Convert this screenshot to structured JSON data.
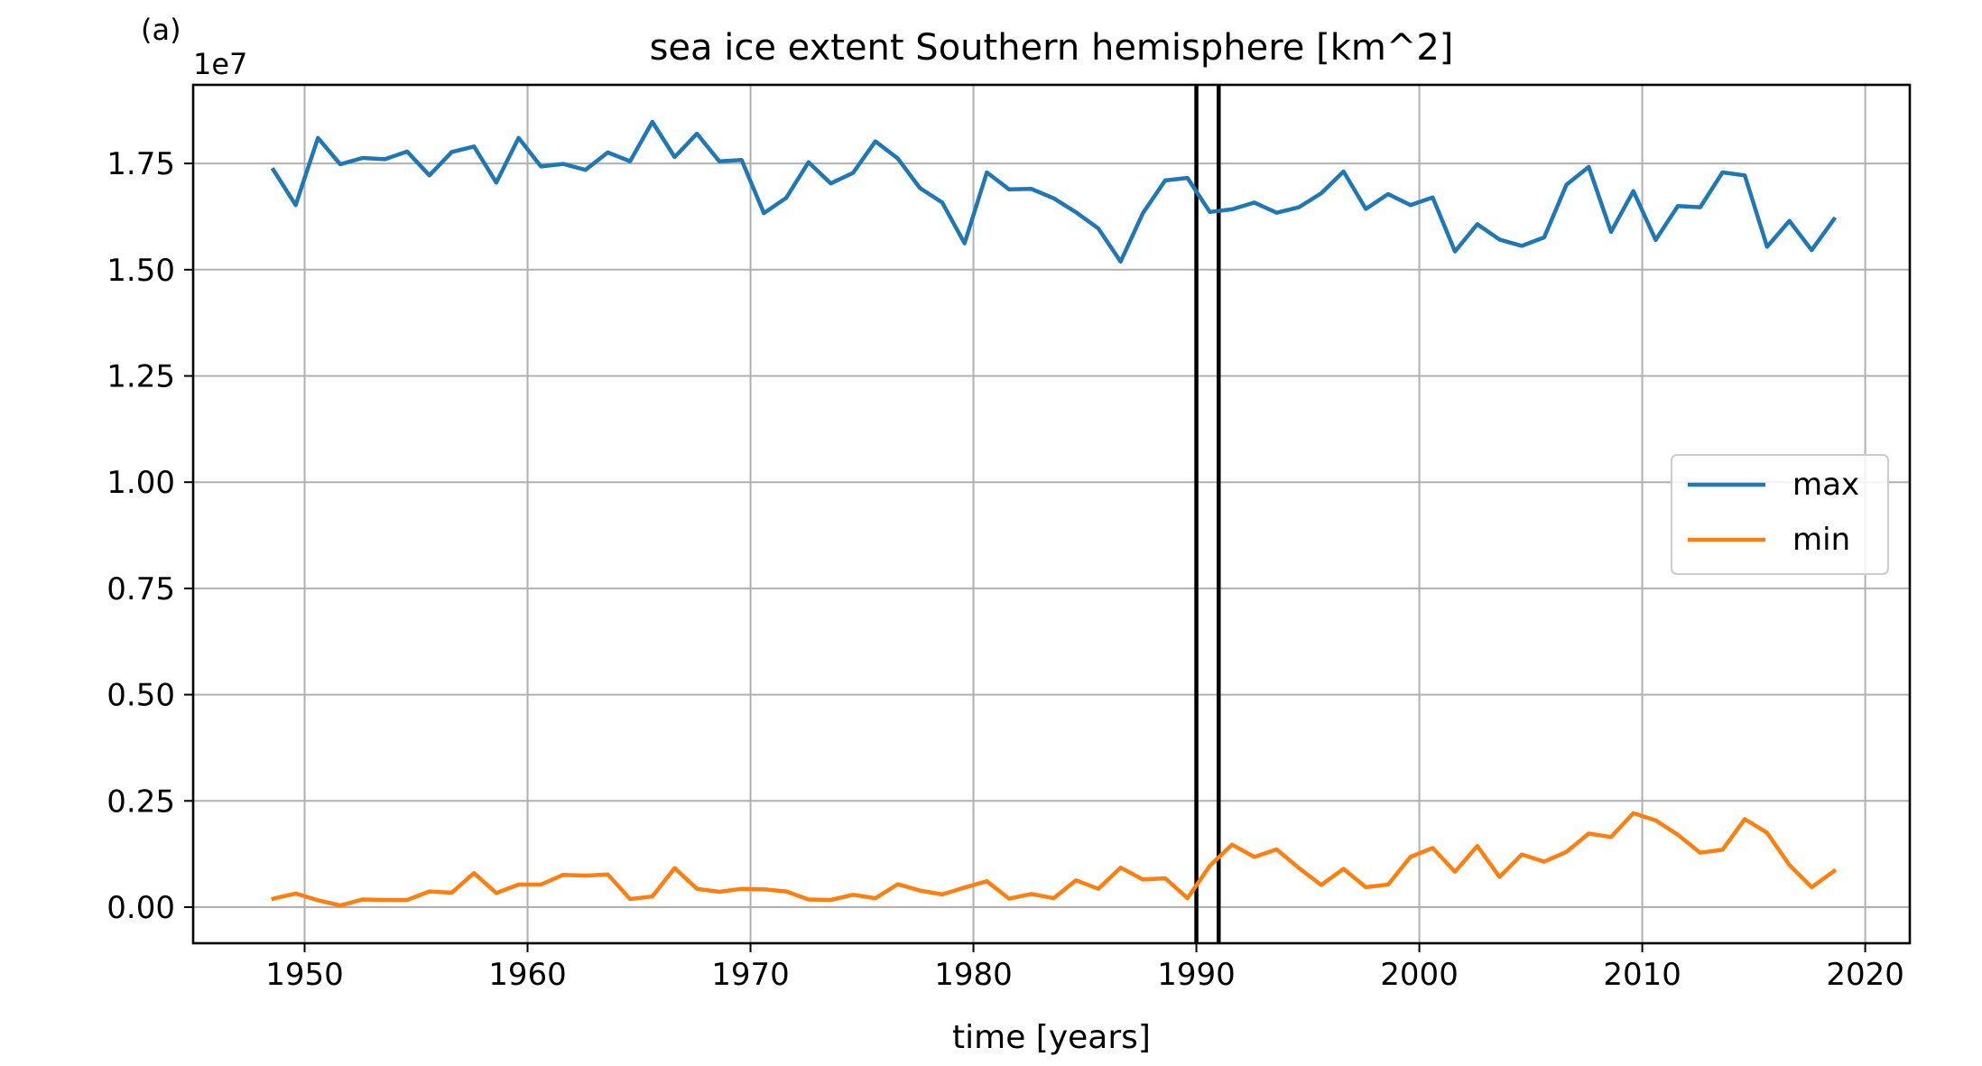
{
  "panel_label": "(a)",
  "chart_data": {
    "type": "line",
    "title": "sea ice extent Southern hemisphere [km^2]",
    "xlabel": "time [years]",
    "ylabel": "",
    "y_offset_label": "1e7",
    "y_scale": 10000000,
    "xlim": [
      1945,
      2022
    ],
    "ylim": [
      -0.085,
      1.935
    ],
    "x_ticks": [
      1950,
      1960,
      1970,
      1980,
      1990,
      2000,
      2010,
      2020
    ],
    "y_ticks": [
      0.0,
      0.25,
      0.5,
      0.75,
      1.0,
      1.25,
      1.5,
      1.75
    ],
    "y_tick_labels": [
      "0.00",
      "0.25",
      "0.50",
      "0.75",
      "1.00",
      "1.25",
      "1.50",
      "1.75"
    ],
    "grid": true,
    "legend_position": "center-right",
    "vlines": [
      1990,
      1991
    ],
    "vline_color": "#000000",
    "x": [
      1948.6,
      1949.6,
      1950.6,
      1951.6,
      1952.6,
      1953.6,
      1954.6,
      1955.6,
      1956.6,
      1957.6,
      1958.6,
      1959.6,
      1960.6,
      1961.6,
      1962.6,
      1963.6,
      1964.6,
      1965.6,
      1966.6,
      1967.6,
      1968.6,
      1969.6,
      1970.6,
      1971.6,
      1972.6,
      1973.6,
      1974.6,
      1975.6,
      1976.6,
      1977.6,
      1978.6,
      1979.6,
      1980.6,
      1981.6,
      1982.6,
      1983.6,
      1984.6,
      1985.6,
      1986.6,
      1987.6,
      1988.6,
      1989.6,
      1990.6,
      1991.6,
      1992.6,
      1993.6,
      1994.6,
      1995.6,
      1996.6,
      1997.6,
      1998.6,
      1999.6,
      2000.6,
      2001.6,
      2002.6,
      2003.6,
      2004.6,
      2005.6,
      2006.6,
      2007.6,
      2008.6,
      2009.6,
      2010.6,
      2011.6,
      2012.6,
      2013.6,
      2014.6,
      2015.6,
      2016.6,
      2017.6,
      2018.6
    ],
    "series": [
      {
        "name": "max",
        "color": "#1f77b4",
        "values": [
          1.735,
          1.652,
          1.81,
          1.748,
          1.763,
          1.76,
          1.778,
          1.722,
          1.777,
          1.79,
          1.705,
          1.81,
          1.743,
          1.749,
          1.735,
          1.776,
          1.755,
          1.848,
          1.765,
          1.82,
          1.755,
          1.758,
          1.633,
          1.669,
          1.753,
          1.703,
          1.728,
          1.802,
          1.762,
          1.692,
          1.658,
          1.562,
          1.729,
          1.689,
          1.69,
          1.668,
          1.635,
          1.597,
          1.519,
          1.633,
          1.71,
          1.716,
          1.636,
          1.642,
          1.658,
          1.634,
          1.647,
          1.68,
          1.731,
          1.643,
          1.678,
          1.652,
          1.67,
          1.543,
          1.607,
          1.571,
          1.556,
          1.576,
          1.7,
          1.742,
          1.589,
          1.685,
          1.57,
          1.65,
          1.647,
          1.729,
          1.722,
          1.554,
          1.615,
          1.546,
          1.619
        ]
      },
      {
        "name": "min",
        "color": "#ff7f0e",
        "values": [
          0.02,
          0.032,
          0.016,
          0.004,
          0.018,
          0.017,
          0.017,
          0.037,
          0.034,
          0.08,
          0.033,
          0.053,
          0.053,
          0.076,
          0.074,
          0.077,
          0.019,
          0.025,
          0.092,
          0.043,
          0.036,
          0.043,
          0.042,
          0.037,
          0.018,
          0.017,
          0.029,
          0.021,
          0.054,
          0.039,
          0.03,
          0.046,
          0.061,
          0.02,
          0.031,
          0.021,
          0.063,
          0.043,
          0.093,
          0.065,
          0.068,
          0.021,
          0.097,
          0.147,
          0.118,
          0.136,
          0.092,
          0.052,
          0.09,
          0.047,
          0.053,
          0.118,
          0.139,
          0.083,
          0.144,
          0.071,
          0.124,
          0.107,
          0.13,
          0.173,
          0.165,
          0.221,
          0.204,
          0.17,
          0.128,
          0.135,
          0.207,
          0.175,
          0.099,
          0.047,
          0.085
        ]
      }
    ]
  }
}
